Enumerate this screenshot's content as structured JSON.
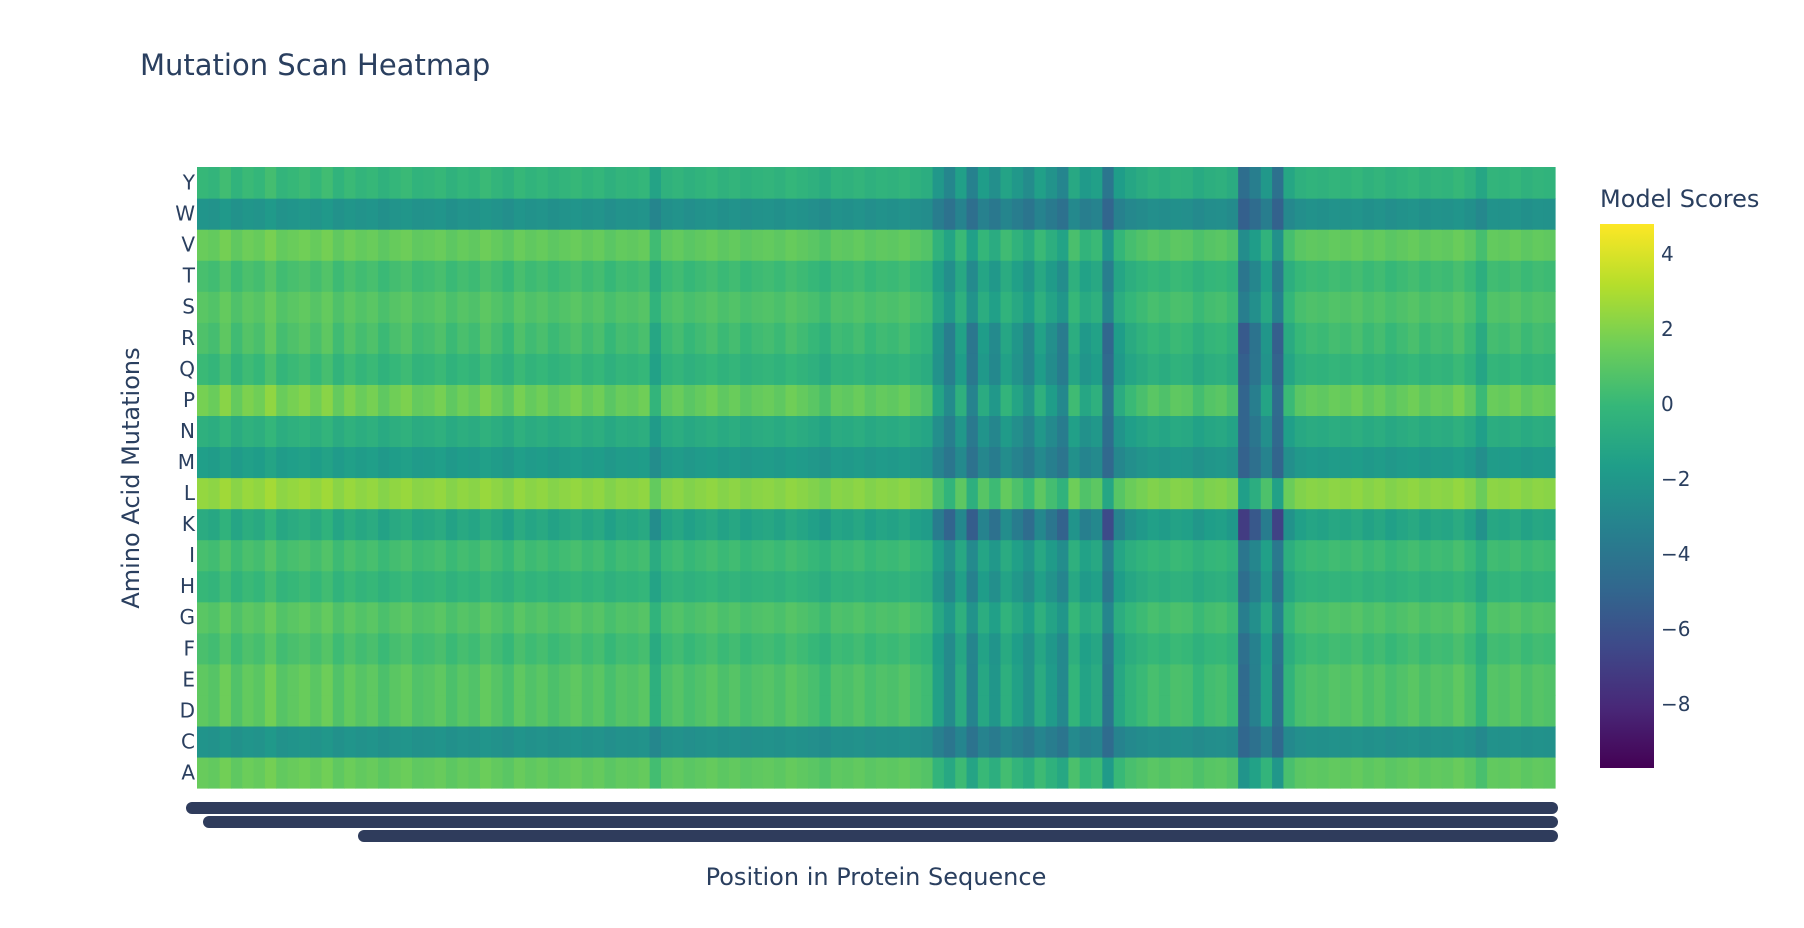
{
  "chart_data": {
    "type": "heatmap",
    "title": "Mutation Scan Heatmap",
    "xlabel": "Position in Protein Sequence",
    "ylabel": "Amino Acid Mutations",
    "y_categories": [
      "A",
      "C",
      "D",
      "E",
      "F",
      "G",
      "H",
      "I",
      "K",
      "L",
      "M",
      "N",
      "P",
      "Q",
      "R",
      "S",
      "T",
      "V",
      "W",
      "Y"
    ],
    "row_baseline": [
      1.0,
      -2.5,
      0.5,
      0.5,
      0.0,
      0.5,
      -0.5,
      0.0,
      -1.5,
      2.0,
      -2.0,
      -1.0,
      1.0,
      -0.5,
      0.0,
      0.5,
      0.0,
      1.0,
      -2.5,
      -0.5
    ],
    "row_sensitivity": [
      0.8,
      0.6,
      1.3,
      1.3,
      1.1,
      1.0,
      1.0,
      1.0,
      1.4,
      0.9,
      0.8,
      1.0,
      1.5,
      1.2,
      1.4,
      1.0,
      1.0,
      0.9,
      0.7,
      1.0
    ],
    "column_profile": [
      0.5,
      0.3,
      0.8,
      0.2,
      0.6,
      0.4,
      0.9,
      0.3,
      0.5,
      0.7,
      0.4,
      0.8,
      0.2,
      0.6,
      0.3,
      0.5,
      0.1,
      0.4,
      0.6,
      0.2,
      0.3,
      0.5,
      0.1,
      0.4,
      0.2,
      0.6,
      0.3,
      0.0,
      0.5,
      0.2,
      0.4,
      0.1,
      0.3,
      0.5,
      0.2,
      0.4,
      0.0,
      0.3,
      0.2,
      0.4,
      -0.8,
      0.1,
      0.3,
      0.0,
      0.2,
      0.4,
      0.1,
      0.3,
      0.0,
      0.2,
      0.3,
      0.1,
      0.4,
      0.2,
      0.0,
      -0.3,
      0.2,
      0.1,
      0.3,
      0.0,
      0.2,
      0.1,
      0.3,
      0.0,
      -0.2,
      -1.5,
      -2.5,
      -1.0,
      -2.8,
      -1.2,
      -2.0,
      -0.8,
      -1.5,
      -2.2,
      -1.0,
      -1.8,
      -2.6,
      -0.5,
      -1.4,
      -1.0,
      -3.5,
      -1.2,
      -0.6,
      -0.3,
      0.0,
      -0.2,
      0.1,
      0.0,
      -0.4,
      -0.1,
      0.0,
      -0.3,
      -4.0,
      -3.0,
      -1.5,
      -3.8,
      -0.6,
      0.0,
      0.2,
      0.1,
      0.3,
      0.2,
      0.4,
      0.1,
      0.3,
      0.0,
      0.2,
      0.4,
      0.1,
      0.3,
      0.2,
      0.5,
      0.1,
      -0.6,
      0.3,
      0.2,
      0.4,
      0.1,
      0.3,
      0.2
    ],
    "colorscale": "Viridis",
    "zmin": -9.7,
    "zmax": 4.8,
    "colorbar": {
      "title": "Model Scores",
      "ticks": [
        4,
        2,
        0,
        -2,
        -4,
        -6,
        -8
      ],
      "tick_labels": [
        "4",
        "2",
        "0",
        "−2",
        "−4",
        "−6",
        "−8"
      ]
    },
    "x_tick_labels_legible": false
  }
}
